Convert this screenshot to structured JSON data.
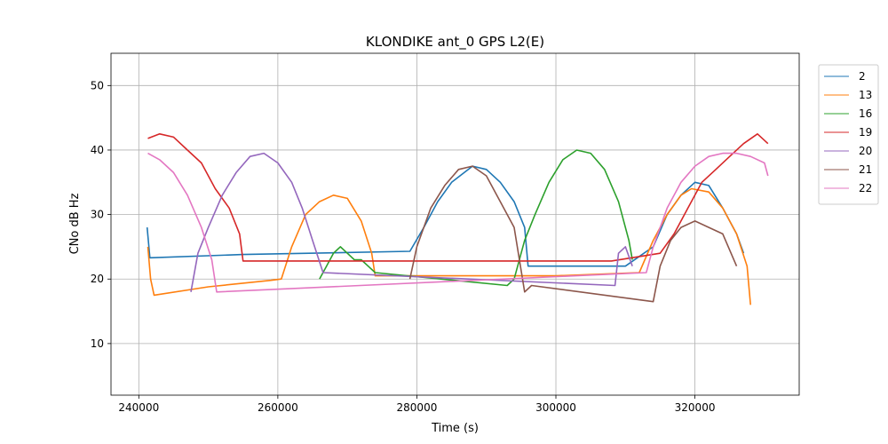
{
  "chart_data": {
    "type": "line",
    "title": "KLONDIKE ant_0 GPS L2(E)",
    "xlabel": "Time (s)",
    "ylabel": "CNo dB Hz",
    "xlim": [
      236000,
      335000
    ],
    "ylim": [
      2,
      55
    ],
    "x_ticks": [
      240000,
      260000,
      280000,
      300000,
      320000
    ],
    "y_ticks": [
      10,
      20,
      30,
      40,
      50
    ],
    "grid": true,
    "legend_position": "outside-right",
    "series": [
      {
        "name": "2",
        "color": "#1f77b4",
        "points": [
          [
            241200,
            28
          ],
          [
            241600,
            23.3
          ],
          [
            255000,
            23.8
          ],
          [
            279000,
            24.3
          ],
          [
            281000,
            28
          ],
          [
            283000,
            32
          ],
          [
            285000,
            35
          ],
          [
            288000,
            37.5
          ],
          [
            290000,
            37
          ],
          [
            292000,
            35
          ],
          [
            294000,
            32
          ],
          [
            295500,
            28
          ],
          [
            296000,
            22
          ],
          [
            310000,
            22
          ],
          [
            314000,
            25
          ],
          [
            316000,
            30
          ],
          [
            318000,
            33
          ],
          [
            320000,
            35
          ],
          [
            322000,
            34.5
          ],
          [
            324000,
            31
          ],
          [
            326000,
            27
          ],
          [
            327000,
            24
          ]
        ]
      },
      {
        "name": "13",
        "color": "#ff7f0e",
        "points": [
          [
            241300,
            25
          ],
          [
            241700,
            20
          ],
          [
            242200,
            17.5
          ],
          [
            250000,
            18.8
          ],
          [
            259000,
            19.8
          ],
          [
            260500,
            20
          ],
          [
            262000,
            25
          ],
          [
            264000,
            30
          ],
          [
            266000,
            32
          ],
          [
            268000,
            33
          ],
          [
            270000,
            32.5
          ],
          [
            272000,
            29
          ],
          [
            273500,
            24
          ],
          [
            274000,
            20.5
          ],
          [
            300000,
            20.5
          ],
          [
            312000,
            21
          ],
          [
            314000,
            26
          ],
          [
            316000,
            30
          ],
          [
            318000,
            33
          ],
          [
            319500,
            34
          ],
          [
            322000,
            33.5
          ],
          [
            324000,
            31
          ],
          [
            326000,
            27
          ],
          [
            327500,
            22
          ],
          [
            328000,
            16
          ]
        ]
      },
      {
        "name": "16",
        "color": "#2ca02c",
        "points": [
          [
            266000,
            20
          ],
          [
            267000,
            22
          ],
          [
            268000,
            24
          ],
          [
            269000,
            25
          ],
          [
            270000,
            24
          ],
          [
            271000,
            23
          ],
          [
            272000,
            23
          ],
          [
            273000,
            22
          ],
          [
            274000,
            21
          ],
          [
            293000,
            19
          ],
          [
            294000,
            20
          ],
          [
            295500,
            26
          ],
          [
            297000,
            30
          ],
          [
            299000,
            35
          ],
          [
            301000,
            38.5
          ],
          [
            303000,
            40
          ],
          [
            305000,
            39.5
          ],
          [
            307000,
            37
          ],
          [
            309000,
            32
          ],
          [
            310500,
            26
          ],
          [
            311000,
            23
          ]
        ]
      },
      {
        "name": "19",
        "color": "#d62728",
        "points": [
          [
            241300,
            41.8
          ],
          [
            243000,
            42.5
          ],
          [
            245000,
            42
          ],
          [
            247000,
            40
          ],
          [
            249000,
            38
          ],
          [
            251000,
            34
          ],
          [
            253000,
            31
          ],
          [
            254500,
            27
          ],
          [
            255000,
            22.8
          ],
          [
            308000,
            22.8
          ],
          [
            315000,
            24
          ],
          [
            317000,
            27
          ],
          [
            319000,
            31
          ],
          [
            321000,
            35
          ],
          [
            323000,
            37
          ],
          [
            325000,
            39
          ],
          [
            327000,
            41
          ],
          [
            329000,
            42.5
          ],
          [
            330500,
            41
          ]
        ]
      },
      {
        "name": "20",
        "color": "#9467bd",
        "points": [
          [
            247500,
            18
          ],
          [
            248500,
            24
          ],
          [
            250000,
            28
          ],
          [
            252000,
            33
          ],
          [
            254000,
            36.5
          ],
          [
            256000,
            39
          ],
          [
            258000,
            39.5
          ],
          [
            260000,
            38
          ],
          [
            262000,
            35
          ],
          [
            263500,
            31
          ],
          [
            265000,
            26
          ],
          [
            266500,
            21
          ],
          [
            308500,
            19
          ],
          [
            309000,
            24
          ],
          [
            310000,
            25
          ],
          [
            311000,
            22
          ]
        ]
      },
      {
        "name": "21",
        "color": "#8c564b",
        "points": [
          [
            279000,
            20
          ],
          [
            280000,
            25
          ],
          [
            282000,
            31
          ],
          [
            284000,
            34.5
          ],
          [
            286000,
            37
          ],
          [
            288000,
            37.5
          ],
          [
            290000,
            36
          ],
          [
            292000,
            32
          ],
          [
            294000,
            28
          ],
          [
            295500,
            18
          ],
          [
            296500,
            19
          ],
          [
            314000,
            16.5
          ],
          [
            315000,
            22
          ],
          [
            316500,
            26
          ],
          [
            318000,
            28
          ],
          [
            320000,
            29
          ],
          [
            322000,
            28
          ],
          [
            324000,
            27
          ],
          [
            326000,
            22
          ]
        ]
      },
      {
        "name": "22",
        "color": "#e377c2",
        "points": [
          [
            241300,
            39.5
          ],
          [
            243000,
            38.5
          ],
          [
            245000,
            36.5
          ],
          [
            247000,
            33
          ],
          [
            249000,
            28
          ],
          [
            250500,
            23
          ],
          [
            251200,
            18
          ],
          [
            313000,
            21
          ],
          [
            314000,
            25
          ],
          [
            316000,
            31
          ],
          [
            318000,
            35
          ],
          [
            320000,
            37.5
          ],
          [
            322000,
            39
          ],
          [
            324000,
            39.5
          ],
          [
            326000,
            39.5
          ],
          [
            328000,
            39
          ],
          [
            330000,
            38
          ],
          [
            330500,
            36
          ]
        ]
      }
    ]
  }
}
